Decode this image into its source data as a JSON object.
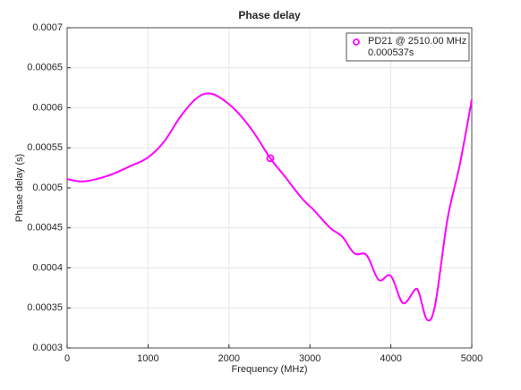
{
  "chart_data": {
    "type": "line",
    "title": "Phase delay",
    "x_label": "Frequency (MHz)",
    "y_label": "Phase delay (s)",
    "x": [
      0,
      200,
      500,
      800,
      1000,
      1200,
      1400,
      1600,
      1750,
      1900,
      2100,
      2300,
      2510,
      2700,
      2900,
      3050,
      3250,
      3400,
      3550,
      3700,
      3850,
      4000,
      4150,
      4300,
      4350,
      4450,
      4550,
      4700,
      4850,
      5000
    ],
    "series": [
      {
        "name": "PD21",
        "color": "#ff00ff",
        "values": [
          0.000511,
          0.000508,
          0.000515,
          0.000528,
          0.000538,
          0.000558,
          0.000589,
          0.000612,
          0.000618,
          0.000612,
          0.000595,
          0.00057,
          0.000537,
          0.000513,
          0.000487,
          0.000472,
          0.00045,
          0.000439,
          0.000418,
          0.000416,
          0.000385,
          0.00039,
          0.000356,
          0.000373,
          0.000368,
          0.000335,
          0.000355,
          0.000461,
          0.000528,
          0.00061
        ]
      }
    ],
    "marker": {
      "label": "PD21 @ 2510.00 MHz",
      "x": 2510,
      "value": 0.000537,
      "value_label": "0.000537s"
    },
    "xlim": [
      0,
      5000
    ],
    "xticks": [
      0,
      1000,
      2000,
      3000,
      4000,
      5000
    ],
    "ylim": [
      0.0003,
      0.0007
    ],
    "yticks": [
      0.0003,
      0.00035,
      0.0004,
      0.00045,
      0.0005,
      0.00055,
      0.0006,
      0.00065,
      0.0007
    ],
    "grid": true,
    "legend": "upper right"
  }
}
